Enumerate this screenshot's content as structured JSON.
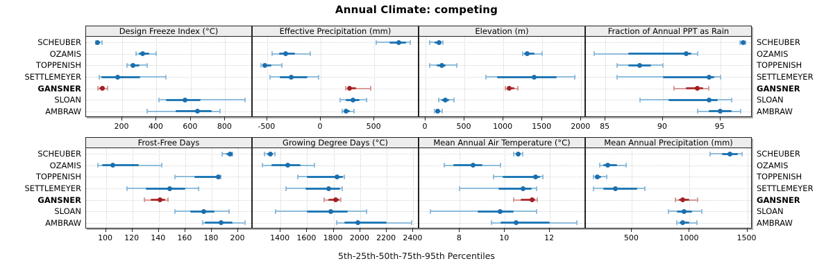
{
  "title": "Annual Climate: competing",
  "caption": "5th-25th-50th-75th-95th Percentiles",
  "sites": [
    "SCHEUBER",
    "OZAMIS",
    "TOPPENISH",
    "SETTLEMEYER",
    "GANSNER",
    "SLOAN",
    "AMBRAW"
  ],
  "highlight_site": "GANSNER",
  "colors": {
    "blue_dot": "#1d6fae",
    "blue_iqr": "#2279b5",
    "blue_light": "#8fbcdb",
    "red_dot": "#a32024",
    "red_iqr": "#b03434",
    "red_light": "#d59a9a",
    "grid": "#d4d4d4",
    "strip_bg": "#ededed",
    "panel_border": "#222222"
  },
  "chart_data": {
    "type": "dot-interval",
    "orientation": "horizontal",
    "percentiles": [
      5,
      25,
      50,
      75,
      95
    ],
    "grid": "dotted",
    "categories": [
      "SCHEUBER",
      "OZAMIS",
      "TOPPENISH",
      "SETTLEMEYER",
      "GANSNER",
      "SLOAN",
      "AMBRAW"
    ],
    "panels": [
      {
        "title": "Design Freeze Index (°C)",
        "row": 0,
        "col": 0,
        "xlim": [
          -10,
          960
        ],
        "ticks": [
          200,
          400,
          600,
          800
        ],
        "values": {
          "SCHEUBER": [
            45,
            50,
            58,
            68,
            82
          ],
          "OZAMIS": [
            280,
            297,
            320,
            358,
            400
          ],
          "TOPPENISH": [
            230,
            247,
            263,
            300,
            345
          ],
          "SETTLEMEYER": [
            68,
            80,
            173,
            305,
            455
          ],
          "GANSNER": [
            58,
            68,
            84,
            100,
            115
          ],
          "SLOAN": [
            415,
            455,
            565,
            655,
            915
          ],
          "AMBRAW": [
            345,
            510,
            640,
            720,
            770
          ]
        }
      },
      {
        "title": "Effective Precipitation (mm)",
        "row": 0,
        "col": 1,
        "xlim": [
          -635,
          920
        ],
        "ticks": [
          -500,
          0,
          500
        ],
        "values": {
          "SCHEUBER": [
            520,
            640,
            730,
            800,
            835
          ],
          "OZAMIS": [
            -455,
            -390,
            -330,
            -240,
            -95
          ],
          "TOPPENISH": [
            -560,
            -540,
            -520,
            -460,
            -365
          ],
          "SETTLEMEYER": [
            -470,
            -380,
            -275,
            -120,
            -20
          ],
          "GANSNER": [
            230,
            250,
            272,
            330,
            465
          ],
          "SLOAN": [
            180,
            230,
            300,
            360,
            425
          ],
          "AMBRAW": [
            200,
            220,
            238,
            270,
            310
          ]
        }
      },
      {
        "title": "Elevation (m)",
        "row": 0,
        "col": 2,
        "xlim": [
          -80,
          2060
        ],
        "ticks": [
          0,
          500,
          1000,
          1500,
          2000
        ],
        "values": {
          "SCHEUBER": [
            50,
            120,
            170,
            195,
            220
          ],
          "OZAMIS": [
            1245,
            1270,
            1310,
            1400,
            1500
          ],
          "TOPPENISH": [
            55,
            140,
            210,
            260,
            400
          ],
          "SETTLEMEYER": [
            780,
            915,
            1400,
            1690,
            1920
          ],
          "GANSNER": [
            1030,
            1045,
            1075,
            1140,
            1190
          ],
          "SLOAN": [
            170,
            205,
            250,
            300,
            365
          ],
          "AMBRAW": [
            120,
            135,
            160,
            185,
            210
          ]
        }
      },
      {
        "title": "Fraction of Annual PPT as Rain",
        "row": 0,
        "col": 3,
        "xlim": [
          83.3,
          97.8
        ],
        "ticks": [
          85,
          90,
          95
        ],
        "values": {
          "SCHEUBER": [
            96.7,
            96.9,
            97,
            97.1,
            97.2
          ],
          "OZAMIS": [
            84,
            87,
            92,
            92.5,
            93
          ],
          "TOPPENISH": [
            86,
            87,
            88,
            89,
            90
          ],
          "SETTLEMEYER": [
            86,
            90,
            94,
            94.5,
            95
          ],
          "GANSNER": [
            91,
            92,
            93,
            93.5,
            94
          ],
          "SLOAN": [
            88,
            90.5,
            94,
            94.8,
            96
          ],
          "AMBRAW": [
            93,
            94,
            95,
            96,
            96.8
          ]
        }
      },
      {
        "title": "Frost-Free Days",
        "row": 1,
        "col": 0,
        "xlim": [
          85,
          211
        ],
        "ticks": [
          100,
          120,
          140,
          160,
          180,
          200
        ],
        "values": {
          "SCHEUBER": [
            188,
            191,
            194,
            195,
            196
          ],
          "OZAMIS": [
            94,
            97,
            105,
            125,
            142
          ],
          "TOPPENISH": [
            152,
            167,
            185,
            186,
            187
          ],
          "SETTLEMEYER": [
            116,
            130,
            148,
            160,
            170
          ],
          "GANSNER": [
            129,
            134,
            141,
            145,
            147
          ],
          "SLOAN": [
            152,
            164,
            174,
            182,
            193
          ],
          "AMBRAW": [
            173,
            175,
            187,
            196,
            205
          ]
        }
      },
      {
        "title": "Growing Degree Days (°C)",
        "row": 1,
        "col": 1,
        "xlim": [
          1190,
          2445
        ],
        "ticks": [
          1400,
          1600,
          1800,
          2000,
          2200,
          2400
        ],
        "values": {
          "SCHEUBER": [
            1280,
            1300,
            1325,
            1340,
            1355
          ],
          "OZAMIS": [
            1265,
            1330,
            1455,
            1550,
            1655
          ],
          "TOPPENISH": [
            1530,
            1600,
            1823,
            1868,
            1882
          ],
          "SETTLEMEYER": [
            1440,
            1590,
            1760,
            1848,
            1865
          ],
          "GANSNER": [
            1728,
            1762,
            1815,
            1842,
            1856
          ],
          "SLOAN": [
            1365,
            1600,
            1780,
            1905,
            2050
          ],
          "AMBRAW": [
            1825,
            1880,
            1980,
            2200,
            2385
          ]
        }
      },
      {
        "title": "Mean Annual Air Temperature (°C)",
        "row": 1,
        "col": 2,
        "xlim": [
          6.2,
          13.6
        ],
        "ticks": [
          8,
          10,
          12
        ],
        "values": {
          "SCHEUBER": [
            10.4,
            10.5,
            10.6,
            10.7,
            10.8
          ],
          "OZAMIS": [
            7.3,
            7.7,
            8.6,
            9.0,
            9.8
          ],
          "TOPPENISH": [
            9.5,
            9.9,
            11.35,
            11.55,
            11.7
          ],
          "SETTLEMEYER": [
            8.0,
            9.7,
            10.8,
            11.2,
            11.4
          ],
          "GANSNER": [
            10.4,
            10.7,
            11.2,
            11.35,
            11.45
          ],
          "SLOAN": [
            6.7,
            8.8,
            9.8,
            10.4,
            11.4
          ],
          "AMBRAW": [
            9.4,
            9.8,
            10.5,
            12.0,
            13.2
          ]
        }
      },
      {
        "title": "Mean Annual Precipitation (mm)",
        "row": 1,
        "col": 3,
        "xlim": [
          100,
          1545
        ],
        "ticks": [
          500,
          1000,
          1500
        ],
        "values": {
          "SCHEUBER": [
            1180,
            1280,
            1350,
            1420,
            1455
          ],
          "OZAMIS": [
            220,
            250,
            290,
            370,
            450
          ],
          "TOPPENISH": [
            167,
            180,
            197,
            230,
            278
          ],
          "SETTLEMEYER": [
            167,
            250,
            353,
            545,
            610
          ],
          "GANSNER": [
            875,
            905,
            940,
            1000,
            1070
          ],
          "SLOAN": [
            815,
            890,
            950,
            1020,
            1105
          ],
          "AMBRAW": [
            890,
            915,
            937,
            1000,
            1065
          ]
        }
      }
    ]
  }
}
